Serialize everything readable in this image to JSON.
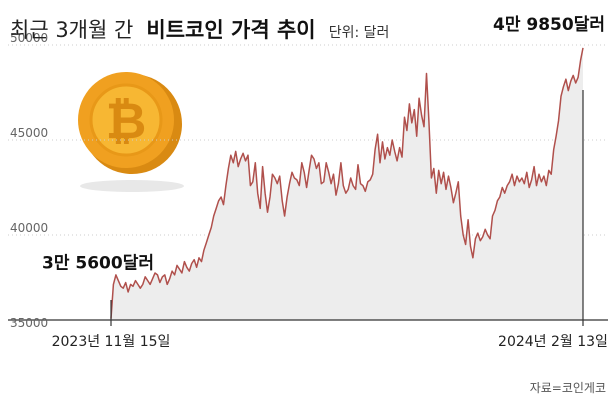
{
  "title": {
    "prefix": "최근 3개월 간",
    "bold": "비트코인 가격 추이",
    "unit": "단위: 달러"
  },
  "source": "자료=코인게코",
  "colors": {
    "line": "#b0504c",
    "area": "#ededed",
    "grid": "#cccccc",
    "axis": "#333333",
    "coin_outer": "#f0a020",
    "coin_inner": "#f7b733",
    "coin_symbol": "#d98a12"
  },
  "icons": {
    "coin": "bitcoin-coin-icon"
  },
  "chart_data": {
    "type": "area",
    "title": "최근 3개월 간 비트코인 가격 추이",
    "unit": "단위: 달러",
    "ylim": [
      35000,
      51000
    ],
    "yticks": [
      "35000",
      "40000",
      "45000",
      "50000"
    ],
    "xtick_labels": [
      "2023년 11월 15일",
      "2024년 2월 13일"
    ],
    "x_range": [
      "2023-11-15",
      "2024-02-13"
    ],
    "grid": "horizontal",
    "legend": "none",
    "annotations": [
      {
        "x": "2023-11-15",
        "y": 35600,
        "text": "3만 5600달러"
      },
      {
        "x": "2024-02-13",
        "y": 49850,
        "text": "4만 9850달러"
      }
    ],
    "series": [
      {
        "values": [
          [
            35600,
            37400,
            37900,
            37600,
            37300,
            37200,
            37500,
            37000,
            37400,
            37300,
            37600,
            37400
          ],
          [
            37200,
            37400,
            37800,
            37600,
            37400,
            37700,
            38000,
            37900,
            37500,
            37800,
            37900,
            37400
          ],
          [
            37700,
            38100,
            37900,
            38400,
            38200,
            38000,
            38600,
            38300,
            38100,
            38500,
            38700,
            38300
          ],
          [
            38800,
            38600,
            39200,
            39600,
            40000,
            40400,
            41000,
            41400,
            41800,
            42000,
            41600,
            42600
          ],
          [
            43500,
            44200,
            43800,
            44400,
            43600,
            44000,
            44300,
            43900,
            44200,
            42600,
            42800,
            43800
          ],
          [
            42200,
            41400,
            43600,
            42200,
            41200,
            42000,
            43200,
            43000,
            42700,
            43100,
            41800,
            41000
          ],
          [
            42000,
            42700,
            43300,
            43000,
            42900,
            42600,
            43800,
            43300,
            42500,
            43400,
            44200,
            44000
          ],
          [
            43500,
            43800,
            42700,
            42800,
            43800,
            43300,
            42700,
            43200,
            42100,
            42700,
            43800,
            42600
          ],
          [
            42200,
            42400,
            43000,
            42600,
            42400,
            43700,
            42700,
            42600,
            42300,
            42800,
            42900,
            43200
          ],
          [
            44500,
            45300,
            43800,
            44900,
            44000,
            44600,
            44200,
            45000,
            44400,
            43900,
            44600,
            44100
          ],
          [
            46200,
            45500,
            46900,
            45900,
            46600,
            45200,
            47200,
            46300,
            45700,
            48500,
            46000,
            43000
          ],
          [
            43500,
            42200,
            43400,
            42700,
            43300,
            42400,
            43100,
            42500,
            41700,
            42200,
            42800,
            41000
          ],
          [
            40000,
            39500,
            40800,
            39400,
            38800,
            39800,
            40100,
            39700,
            39900,
            40300,
            40000,
            39800
          ],
          [
            41000,
            41300,
            41800,
            42000,
            42500,
            42200,
            42600,
            42800,
            43200,
            42600,
            43100,
            42800
          ],
          [
            43000,
            42700,
            43300,
            42500,
            42900,
            43600,
            42600,
            43200,
            42800,
            43100,
            42600,
            43400
          ],
          [
            43200,
            44500,
            45200,
            46000,
            47300,
            47800,
            48200,
            47600,
            48100,
            48400,
            48000,
            48300
          ],
          [
            49200,
            49850
          ]
        ]
      }
    ]
  }
}
